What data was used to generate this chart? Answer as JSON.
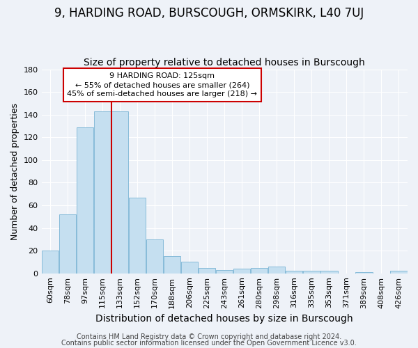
{
  "title": "9, HARDING ROAD, BURSCOUGH, ORMSKIRK, L40 7UJ",
  "subtitle": "Size of property relative to detached houses in Burscough",
  "xlabel": "Distribution of detached houses by size in Burscough",
  "ylabel": "Number of detached properties",
  "categories": [
    "60sqm",
    "78sqm",
    "97sqm",
    "115sqm",
    "133sqm",
    "152sqm",
    "170sqm",
    "188sqm",
    "206sqm",
    "225sqm",
    "243sqm",
    "261sqm",
    "280sqm",
    "298sqm",
    "316sqm",
    "335sqm",
    "353sqm",
    "371sqm",
    "389sqm",
    "408sqm",
    "426sqm"
  ],
  "values": [
    20,
    52,
    129,
    143,
    143,
    67,
    30,
    15,
    10,
    5,
    3,
    4,
    5,
    6,
    2,
    2,
    2,
    0,
    1,
    0,
    2
  ],
  "bar_color": "#c5dff0",
  "bar_edge_color": "#7ab4d4",
  "annotation_text": "9 HARDING ROAD: 125sqm\n← 55% of detached houses are smaller (264)\n45% of semi-detached houses are larger (218) →",
  "annotation_box_color": "#ffffff",
  "annotation_box_edge_color": "#cc0000",
  "footer1": "Contains HM Land Registry data © Crown copyright and database right 2024.",
  "footer2": "Contains public sector information licensed under the Open Government Licence v3.0.",
  "ylim": [
    0,
    180
  ],
  "yticks": [
    0,
    20,
    40,
    60,
    80,
    100,
    120,
    140,
    160,
    180
  ],
  "background_color": "#eef2f8",
  "grid_color": "#ffffff",
  "title_fontsize": 12,
  "subtitle_fontsize": 10,
  "tick_fontsize": 8,
  "ylabel_fontsize": 9,
  "xlabel_fontsize": 10,
  "footer_fontsize": 7
}
